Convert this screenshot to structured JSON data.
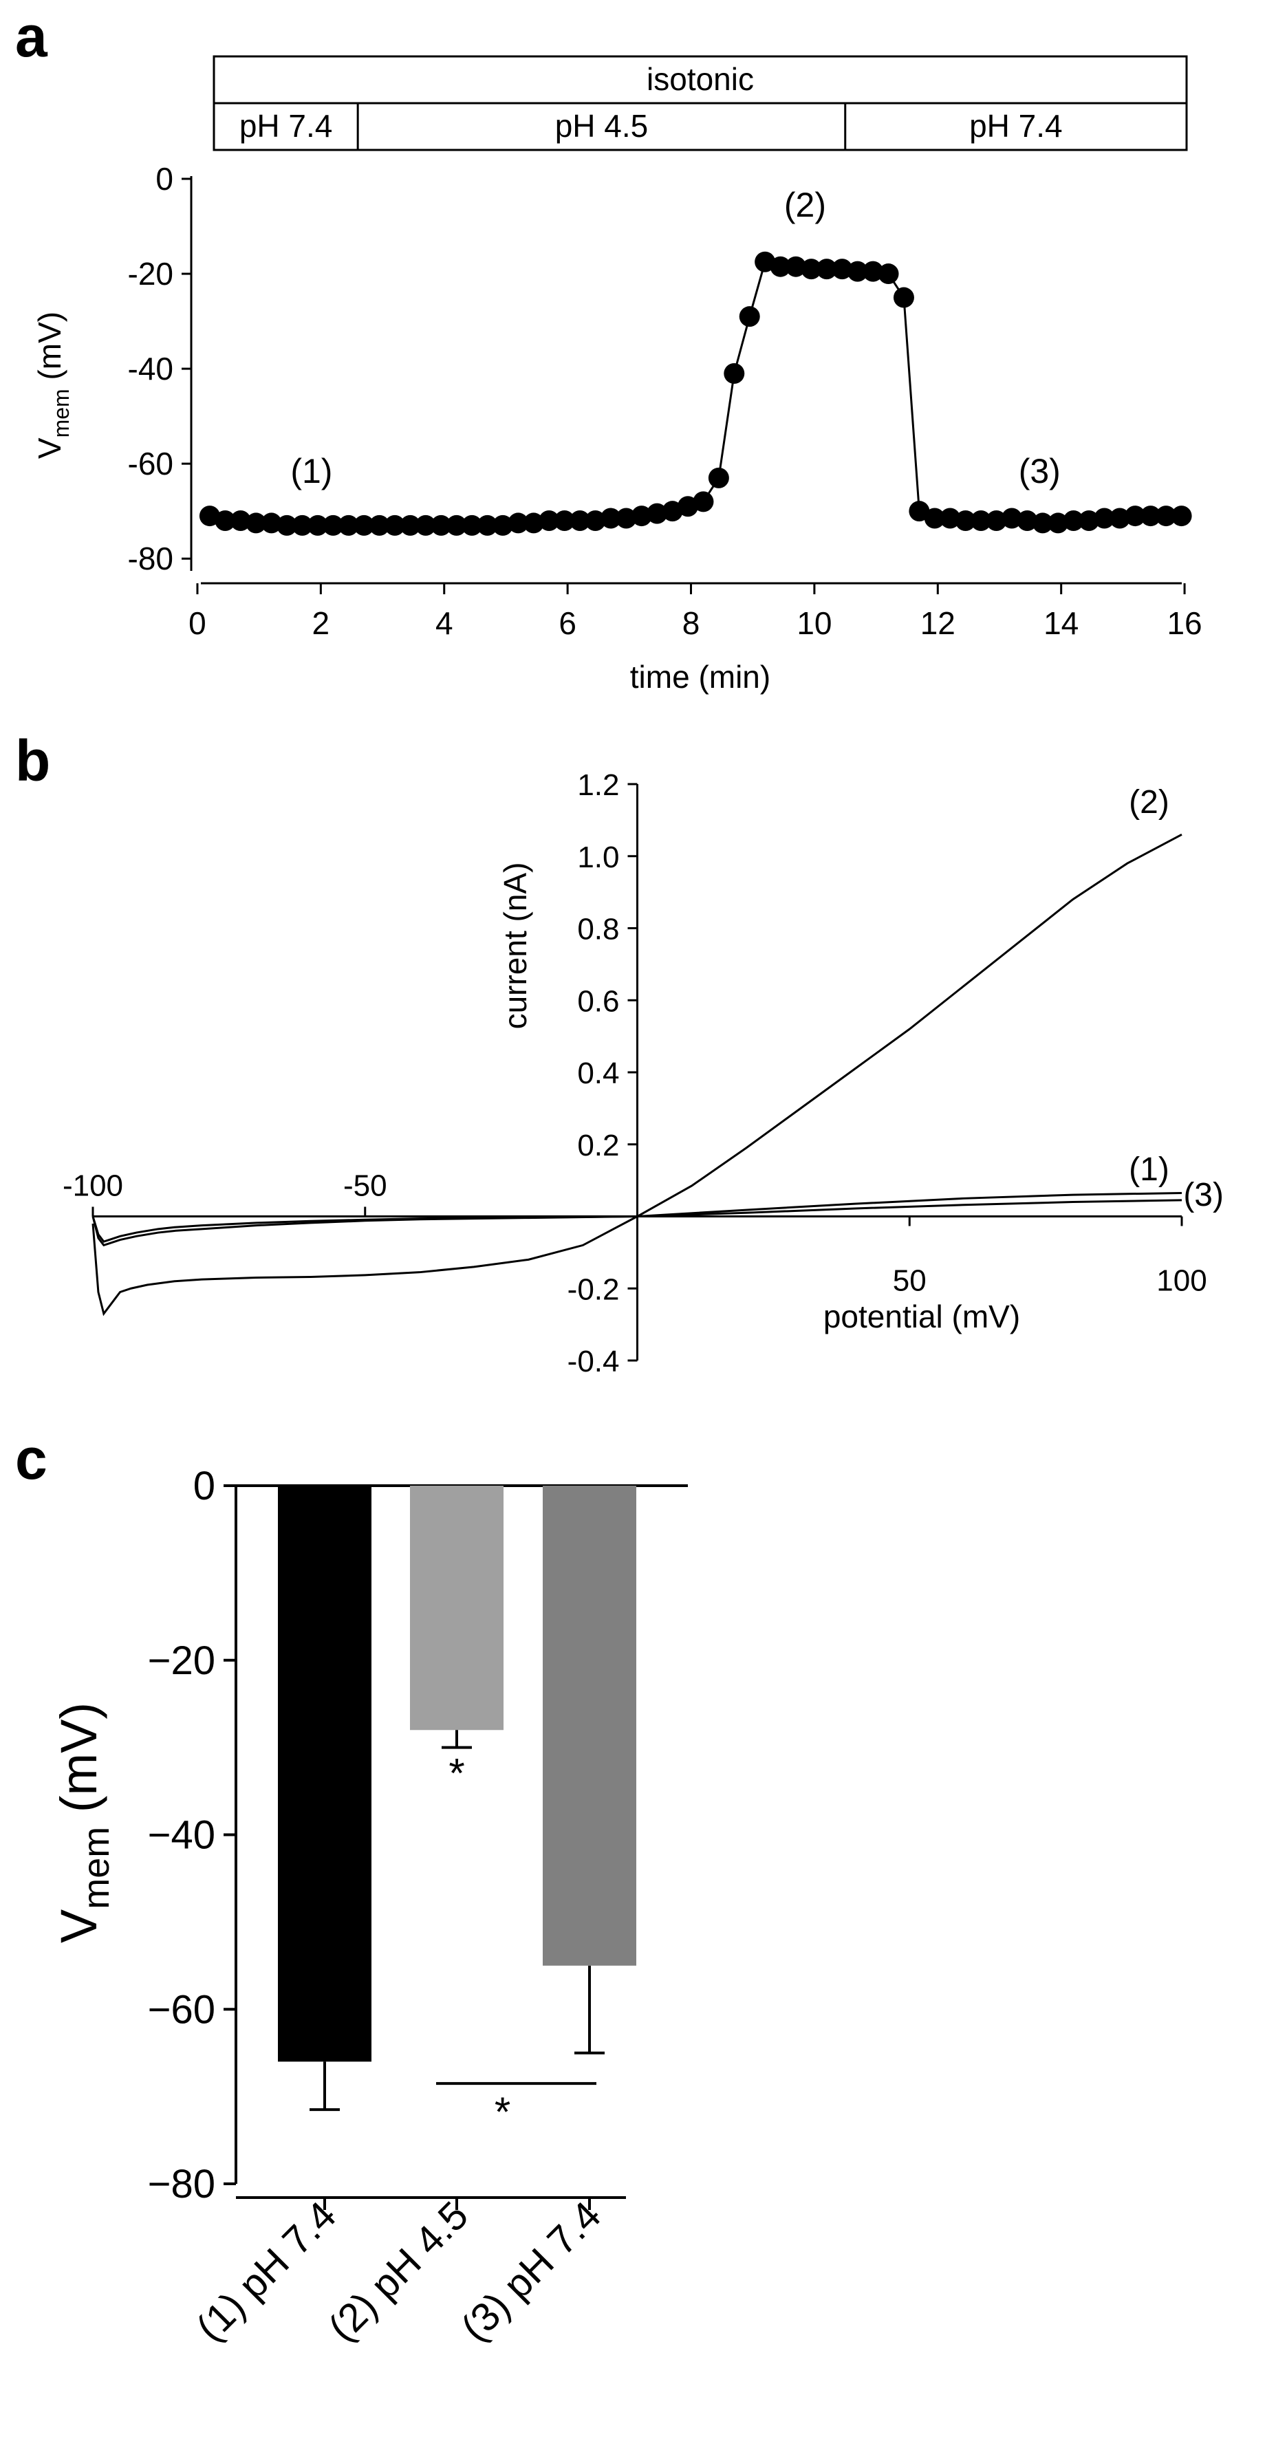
{
  "panels": {
    "a": {
      "label": "a"
    },
    "b": {
      "label": "b"
    },
    "c": {
      "label": "c"
    }
  },
  "chart_data": [
    {
      "panel": "a",
      "type": "scatter",
      "condition_bar": {
        "top_label": "isotonic",
        "segments": [
          {
            "label": "pH 7.4",
            "from": 0,
            "to": 2.6
          },
          {
            "label": "pH 4.5",
            "from": 2.6,
            "to": 10.5
          },
          {
            "label": "pH 7.4",
            "from": 10.5,
            "to": 16.1
          }
        ]
      },
      "xlabel": "time (min)",
      "ylabel_main": "V",
      "ylabel_sub": "mem",
      "ylabel_unit": " (mV)",
      "xlim": [
        -0.1,
        16.2
      ],
      "ylim": [
        -82,
        0
      ],
      "xticks": [
        0,
        2,
        4,
        6,
        8,
        10,
        12,
        14,
        16
      ],
      "yticks": [
        0,
        -20,
        -40,
        -60,
        -80
      ],
      "x": [
        0.2,
        0.45,
        0.7,
        0.95,
        1.2,
        1.45,
        1.7,
        1.95,
        2.2,
        2.45,
        2.7,
        2.95,
        3.2,
        3.45,
        3.7,
        3.95,
        4.2,
        4.45,
        4.7,
        4.95,
        5.2,
        5.45,
        5.7,
        5.95,
        6.2,
        6.45,
        6.7,
        6.95,
        7.2,
        7.45,
        7.7,
        7.95,
        8.2,
        8.45,
        8.7,
        8.95,
        9.2,
        9.45,
        9.7,
        9.95,
        10.2,
        10.45,
        10.7,
        10.95,
        11.2,
        11.45,
        11.7,
        11.95,
        12.2,
        12.45,
        12.7,
        12.95,
        13.2,
        13.45,
        13.7,
        13.95,
        14.2,
        14.45,
        14.7,
        14.95,
        15.2,
        15.45,
        15.7,
        15.95
      ],
      "y": [
        -71,
        -72,
        -72,
        -72.5,
        -72.5,
        -73,
        -73,
        -73,
        -73,
        -73,
        -73,
        -73,
        -73,
        -73,
        -73,
        -73,
        -73,
        -73,
        -73,
        -73,
        -72.5,
        -72.5,
        -72,
        -72,
        -72,
        -72,
        -71.5,
        -71.5,
        -71,
        -70.5,
        -70,
        -69,
        -68,
        -63,
        -41,
        -29,
        -17.5,
        -18.5,
        -18.5,
        -19,
        -19,
        -19,
        -19.5,
        -19.5,
        -20,
        -25,
        -70,
        -71.5,
        -71.5,
        -72,
        -72,
        -72,
        -71.5,
        -72,
        -72.5,
        -72.5,
        -72,
        -72,
        -71.5,
        -71.5,
        -71,
        -71,
        -71,
        -71
      ],
      "annotations": [
        {
          "text": "(1)",
          "x": 1.85,
          "y": -64
        },
        {
          "text": "(2)",
          "x": 9.85,
          "y": -8
        },
        {
          "text": "(3)",
          "x": 13.65,
          "y": -64
        }
      ]
    },
    {
      "panel": "b",
      "type": "line",
      "xlabel": "potential (mV)",
      "ylabel": "current (nA)",
      "xlim": [
        -100,
        100
      ],
      "ylim": [
        -0.4,
        1.2
      ],
      "xticks": [
        -100,
        -50,
        50,
        100
      ],
      "yticks": [
        1.2,
        1.0,
        0.8,
        0.6,
        0.4,
        0.2,
        -0.2,
        -0.4
      ],
      "series": [
        {
          "label": "(2)",
          "x": [
            -100,
            -99,
            -98,
            -97,
            -96,
            -95,
            -93,
            -90,
            -85,
            -80,
            -70,
            -60,
            -50,
            -40,
            -30,
            -20,
            -10,
            0,
            10,
            20,
            30,
            40,
            50,
            60,
            70,
            80,
            90,
            100
          ],
          "y": [
            -0.02,
            -0.21,
            -0.27,
            -0.25,
            -0.23,
            -0.21,
            -0.2,
            -0.19,
            -0.18,
            -0.175,
            -0.17,
            -0.168,
            -0.163,
            -0.155,
            -0.14,
            -0.12,
            -0.08,
            0,
            0.085,
            0.19,
            0.3,
            0.41,
            0.52,
            0.64,
            0.76,
            0.88,
            0.98,
            1.06
          ]
        },
        {
          "label": "(1)",
          "x": [
            -100,
            -99,
            -98,
            -97,
            -95,
            -92,
            -88,
            -85,
            -80,
            -70,
            -60,
            -50,
            -40,
            -20,
            0,
            20,
            40,
            60,
            80,
            100
          ],
          "y": [
            0.0,
            -0.06,
            -0.08,
            -0.075,
            -0.065,
            -0.055,
            -0.045,
            -0.04,
            -0.035,
            -0.025,
            -0.018,
            -0.012,
            -0.008,
            -0.004,
            0,
            0.018,
            0.035,
            0.05,
            0.06,
            0.065
          ]
        },
        {
          "label": "(3)",
          "x": [
            -100,
            -99,
            -98,
            -97,
            -95,
            -92,
            -88,
            -85,
            -80,
            -70,
            -60,
            -50,
            -40,
            -20,
            0,
            20,
            40,
            60,
            80,
            100
          ],
          "y": [
            0.0,
            -0.05,
            -0.07,
            -0.065,
            -0.055,
            -0.045,
            -0.035,
            -0.03,
            -0.025,
            -0.018,
            -0.013,
            -0.009,
            -0.006,
            -0.003,
            0,
            0.01,
            0.022,
            0.032,
            0.04,
            0.045
          ]
        }
      ],
      "zero_line": {
        "from": -100,
        "to": 100
      },
      "curve_labels": [
        {
          "text": "(2)",
          "x": 94,
          "y": 1.12
        },
        {
          "text": "(1)",
          "x": 94,
          "y": 0.1
        },
        {
          "text": "(3)",
          "x": 104,
          "y": 0.03
        }
      ]
    },
    {
      "panel": "c",
      "type": "bar",
      "ylabel_main": "V",
      "ylabel_sub": "mem",
      "ylabel_unit": " (mV)",
      "ylim": [
        -80,
        0
      ],
      "yticks": [
        0,
        -20,
        -40,
        -60,
        -80
      ],
      "categories": [
        "(1) pH 7.4",
        "(2) pH 4.5",
        "(3) pH 7.4"
      ],
      "values": [
        -66,
        -28,
        -55
      ],
      "errors": [
        5.5,
        2,
        10
      ],
      "colors": [
        "#000000",
        "#a0a0a0",
        "#808080"
      ],
      "significance": [
        {
          "text": "*",
          "type": "under_bar",
          "bar": 1
        },
        {
          "text": "*",
          "type": "line",
          "from_bar": 1,
          "to_bar": 2,
          "y": -68.5
        }
      ]
    }
  ]
}
